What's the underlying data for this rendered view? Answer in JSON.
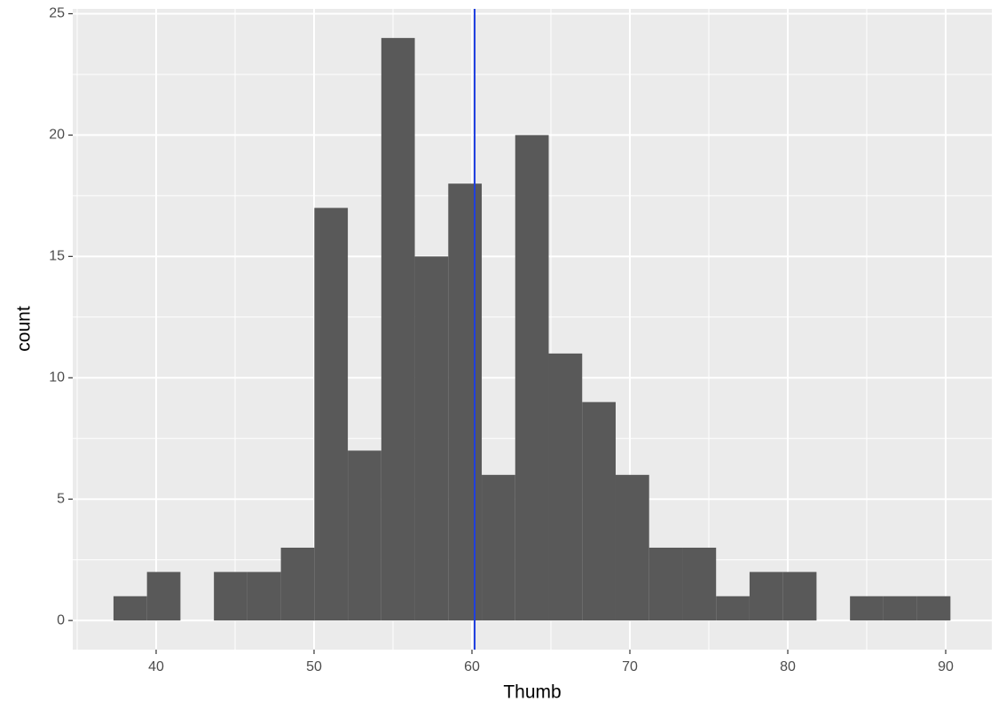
{
  "chart_data": {
    "type": "histogram",
    "x_label": "Thumb",
    "y_label": "count",
    "bins": [
      37.3,
      39.42,
      41.54,
      43.66,
      45.78,
      47.9,
      50.02,
      52.14,
      54.26,
      56.38,
      58.5,
      60.62,
      62.74,
      64.86,
      66.98,
      69.1,
      71.22,
      73.34,
      75.46,
      77.58,
      79.7,
      81.82,
      83.94,
      86.06,
      88.18,
      90.3
    ],
    "values": [
      1,
      2,
      0,
      2,
      2,
      3,
      17,
      7,
      24,
      15,
      18,
      6,
      20,
      11,
      9,
      6,
      3,
      3,
      1,
      2,
      2,
      0,
      1,
      1,
      1
    ],
    "color": "#595959",
    "vline": {
      "value": 60.17,
      "color": "#1f3fe0"
    },
    "xlim": [
      34.72,
      92.92
    ],
    "xticks": [
      40,
      50,
      60,
      70,
      80,
      90
    ],
    "ylim": [
      -1.2,
      25.2
    ],
    "yticks": [
      0,
      5,
      10,
      15,
      20,
      25
    ],
    "grid": true
  }
}
